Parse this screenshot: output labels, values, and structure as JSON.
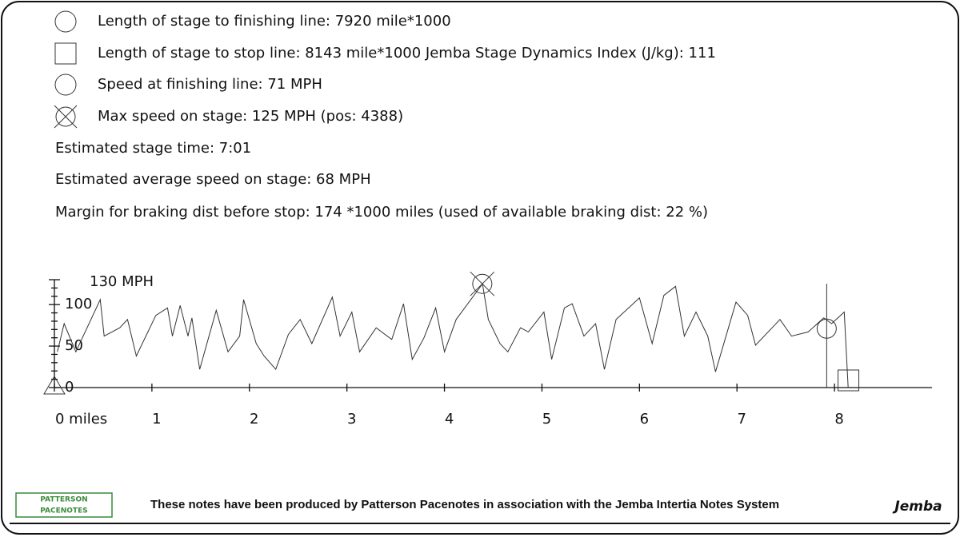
{
  "info": {
    "lines": [
      "Length of stage to finishing line: 7920 mile*1000",
      "Length of stage to stop line: 8143 mile*1000 Jemba Stage Dynamics Index (J/kg): 111",
      "Speed at finishing line: 71 MPH",
      "Max speed on stage: 125 MPH (pos: 4388)",
      "Estimated stage time: 7:01",
      "Estimated average speed on stage: 68 MPH",
      "Margin for braking dist before stop: 174 *1000 miles (used of available braking dist: 22 %)"
    ]
  },
  "chart_data": {
    "type": "line",
    "color": "#333333",
    "x": [
      0.03,
      0.1,
      0.22,
      0.47,
      0.51,
      0.67,
      0.75,
      0.84,
      1.04,
      1.16,
      1.21,
      1.29,
      1.37,
      1.41,
      1.49,
      1.66,
      1.78,
      1.9,
      1.94,
      2.07,
      2.15,
      2.27,
      2.4,
      2.52,
      2.64,
      2.85,
      2.93,
      3.05,
      3.13,
      3.3,
      3.46,
      3.58,
      3.67,
      3.79,
      3.91,
      4.0,
      4.12,
      4.39,
      4.45,
      4.57,
      4.65,
      4.78,
      4.86,
      5.02,
      5.1,
      5.23,
      5.31,
      5.43,
      5.55,
      5.64,
      5.76,
      6.0,
      6.13,
      6.25,
      6.37,
      6.46,
      6.58,
      6.7,
      6.78,
      6.99,
      7.11,
      7.19,
      7.36,
      7.44,
      7.56,
      7.73,
      7.89,
      7.97,
      8.1,
      8.14
    ],
    "values": [
      43,
      77,
      43,
      106,
      62,
      72,
      82,
      38,
      87,
      96,
      62,
      99,
      62,
      84,
      22,
      93,
      43,
      62,
      106,
      53,
      38,
      22,
      64,
      82,
      53,
      109,
      62,
      91,
      43,
      72,
      58,
      101,
      34,
      60,
      96,
      43,
      82,
      125,
      82,
      53,
      43,
      72,
      67,
      91,
      34,
      96,
      101,
      62,
      77,
      22,
      82,
      108,
      53,
      111,
      122,
      62,
      91,
      62,
      19,
      103,
      87,
      51,
      72,
      82,
      62,
      67,
      84,
      77,
      91,
      0
    ],
    "xlim": [
      0,
      9
    ],
    "ylim": [
      0,
      130
    ],
    "xticks": [
      {
        "value": 0,
        "label": "0 miles"
      },
      1,
      2,
      3,
      4,
      5,
      6,
      7,
      8
    ],
    "yticks": [
      0,
      50,
      100,
      {
        "value": 130,
        "label": "130 MPH"
      }
    ],
    "yminorticks": [
      10,
      20,
      30,
      40,
      60,
      70,
      80,
      90,
      110,
      120
    ],
    "start": {
      "x": 0,
      "y": 0
    },
    "max": {
      "x": 4.388,
      "y": 125
    },
    "finish": {
      "x": 7.92,
      "y": 71
    },
    "stop": {
      "x": 8.143,
      "y": 0
    }
  },
  "footer": {
    "logo_top": "PATTERSON",
    "logo_bottom": "PACENOTES",
    "text": "These notes have been produced by Patterson Pacenotes in association with the Jemba Intertia Notes System",
    "brand": "Jemba"
  }
}
